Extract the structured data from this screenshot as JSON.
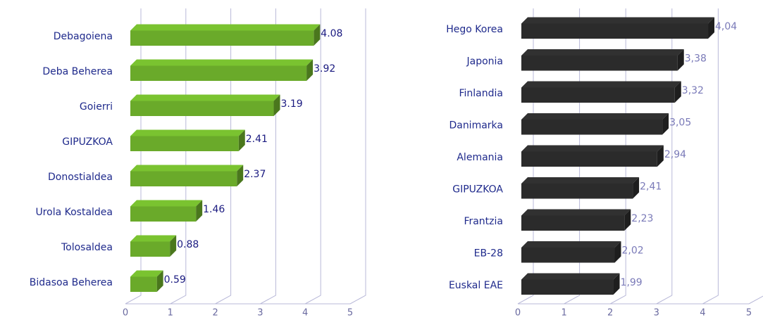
{
  "chart_data": [
    {
      "type": "bar",
      "orientation": "horizontal",
      "color": "#6aaa2a",
      "categories": [
        "Debagoiena",
        "Deba Beherea",
        "Goierri",
        "GIPUZKOA",
        "Donostialdea",
        "Urola Kostaldea",
        "Tolosaldea",
        "Bidasoa Beherea"
      ],
      "values": [
        4.08,
        3.92,
        3.19,
        2.41,
        2.37,
        1.46,
        0.88,
        0.59
      ],
      "xlim": [
        0,
        5
      ],
      "xticks": [
        0,
        1,
        2,
        3,
        4,
        5
      ],
      "grid": true
    },
    {
      "type": "bar",
      "orientation": "horizontal",
      "color": "#2b2b2b",
      "categories": [
        "Hego Korea",
        "Japonia",
        "Finlandia",
        "Danimarka",
        "Alemania",
        "GIPUZKOA",
        "Frantzia",
        "EB-28",
        "Euskal EAE"
      ],
      "values": [
        4.04,
        3.38,
        3.32,
        3.05,
        2.94,
        2.41,
        2.23,
        2.02,
        1.99
      ],
      "value_labels": [
        "4,04",
        "3,38",
        "3,32",
        "3,05",
        "2,94",
        "2,41",
        "2,23",
        "2,02",
        "1,99"
      ],
      "xlim": [
        0,
        5
      ],
      "xticks": [
        0,
        1,
        2,
        3,
        4,
        5
      ],
      "grid": true
    }
  ]
}
